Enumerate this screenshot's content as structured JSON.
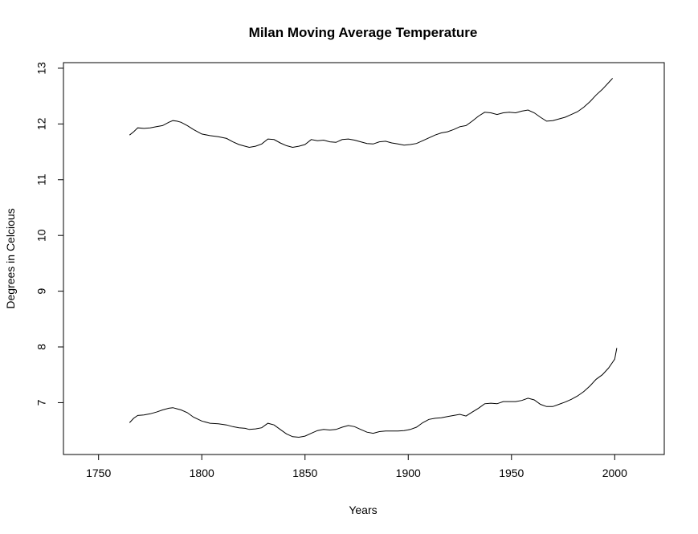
{
  "chart_data": {
    "type": "line",
    "title": "Milan Moving Average Temperature",
    "xlabel": "Years",
    "ylabel": "Degrees in Celcious",
    "xlim": [
      1733,
      2024
    ],
    "ylim": [
      6.07,
      13.1
    ],
    "x_ticks": [
      1750,
      1800,
      1850,
      1900,
      1950,
      2000
    ],
    "y_ticks": [
      7,
      8,
      9,
      10,
      11,
      12,
      13
    ],
    "grid": false,
    "legend": "none",
    "series": [
      {
        "color": "#000000",
        "x": [
          1765,
          1767,
          1769,
          1772,
          1775,
          1778,
          1781,
          1784,
          1786,
          1788,
          1790,
          1793,
          1796,
          1800,
          1804,
          1808,
          1812,
          1815,
          1818,
          1821,
          1823,
          1826,
          1829,
          1832,
          1835,
          1838,
          1841,
          1844,
          1847,
          1850,
          1853,
          1856,
          1859,
          1862,
          1865,
          1868,
          1871,
          1874,
          1877,
          1880,
          1883,
          1886,
          1889,
          1892,
          1895,
          1898,
          1901,
          1904,
          1907,
          1910,
          1913,
          1916,
          1919,
          1922,
          1925,
          1928,
          1931,
          1934,
          1937,
          1940,
          1943,
          1946,
          1949,
          1952,
          1955,
          1958,
          1961,
          1964,
          1967,
          1970,
          1973,
          1976,
          1979,
          1982,
          1985,
          1988,
          1991,
          1994,
          1997,
          1999
        ],
        "values": [
          11.8,
          11.86,
          11.93,
          11.92,
          11.93,
          11.95,
          11.97,
          12.03,
          12.06,
          12.05,
          12.03,
          11.97,
          11.9,
          11.82,
          11.79,
          11.77,
          11.74,
          11.68,
          11.63,
          11.6,
          11.58,
          11.6,
          11.64,
          11.73,
          11.72,
          11.66,
          11.61,
          11.58,
          11.6,
          11.63,
          11.72,
          11.7,
          11.71,
          11.68,
          11.67,
          11.72,
          11.73,
          11.71,
          11.68,
          11.65,
          11.64,
          11.68,
          11.69,
          11.66,
          11.64,
          11.62,
          11.63,
          11.65,
          11.7,
          11.75,
          11.8,
          11.84,
          11.86,
          11.9,
          11.95,
          11.97,
          12.05,
          12.14,
          12.21,
          12.2,
          12.17,
          12.2,
          12.21,
          12.2,
          12.23,
          12.25,
          12.2,
          12.12,
          12.05,
          12.06,
          12.09,
          12.12,
          12.17,
          12.22,
          12.3,
          12.4,
          12.52,
          12.62,
          12.74,
          12.82
        ]
      },
      {
        "color": "#000000",
        "x": [
          1765,
          1767,
          1769,
          1772,
          1775,
          1778,
          1781,
          1784,
          1786,
          1788,
          1790,
          1793,
          1796,
          1800,
          1804,
          1808,
          1812,
          1815,
          1818,
          1821,
          1823,
          1826,
          1829,
          1832,
          1835,
          1838,
          1841,
          1844,
          1847,
          1850,
          1853,
          1856,
          1859,
          1862,
          1865,
          1868,
          1871,
          1874,
          1877,
          1880,
          1883,
          1886,
          1889,
          1892,
          1895,
          1898,
          1901,
          1904,
          1907,
          1910,
          1913,
          1916,
          1919,
          1922,
          1925,
          1928,
          1931,
          1934,
          1937,
          1940,
          1943,
          1946,
          1949,
          1952,
          1955,
          1958,
          1961,
          1964,
          1967,
          1970,
          1973,
          1976,
          1979,
          1982,
          1985,
          1988,
          1991,
          1994,
          1997,
          2000,
          2001
        ],
        "values": [
          6.64,
          6.72,
          6.77,
          6.78,
          6.8,
          6.83,
          6.87,
          6.9,
          6.91,
          6.89,
          6.87,
          6.82,
          6.74,
          6.67,
          6.63,
          6.62,
          6.6,
          6.57,
          6.55,
          6.54,
          6.52,
          6.53,
          6.55,
          6.63,
          6.6,
          6.52,
          6.44,
          6.39,
          6.38,
          6.4,
          6.45,
          6.5,
          6.52,
          6.51,
          6.52,
          6.56,
          6.59,
          6.57,
          6.52,
          6.47,
          6.45,
          6.48,
          6.49,
          6.49,
          6.49,
          6.5,
          6.52,
          6.56,
          6.64,
          6.7,
          6.72,
          6.73,
          6.75,
          6.77,
          6.79,
          6.76,
          6.83,
          6.9,
          6.98,
          6.99,
          6.98,
          7.02,
          7.02,
          7.02,
          7.04,
          7.08,
          7.05,
          6.97,
          6.93,
          6.93,
          6.97,
          7.01,
          7.06,
          7.12,
          7.2,
          7.3,
          7.42,
          7.5,
          7.62,
          7.78,
          7.98
        ]
      }
    ]
  }
}
